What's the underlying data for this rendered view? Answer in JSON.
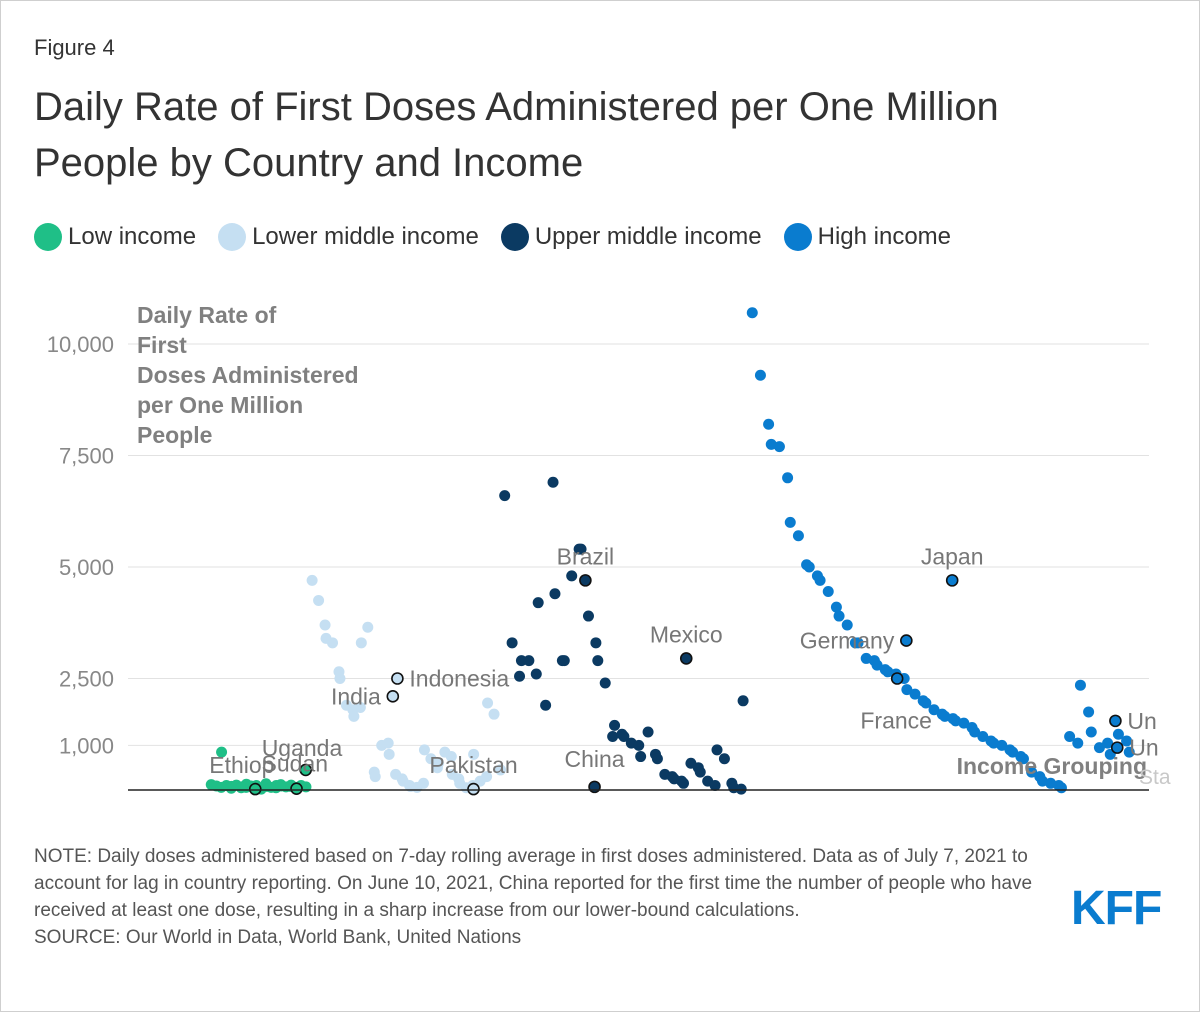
{
  "figure_label": "Figure 4",
  "title": "Daily Rate of First Doses Administered per One Million People by Country and Income",
  "legend": [
    {
      "label": "Low income",
      "color": "#1fbf87"
    },
    {
      "label": "Lower middle income",
      "color": "#c5dff2"
    },
    {
      "label": "Upper middle income",
      "color": "#0b3a62"
    },
    {
      "label": "High income",
      "color": "#0a7ccf"
    }
  ],
  "note": "NOTE: Daily doses administered based on 7-day rolling average in first doses administered. Data as of July 7, 2021 to account for lag in country reporting. On June 10, 2021, China reported for the first time the number of people who have received at least one dose, resulting in a sharp increase from our lower-bound calculations.",
  "source": "SOURCE: Our World in Data, World Bank, United Nations",
  "logo": "KFF",
  "chart_data": {
    "type": "scatter",
    "title": "Daily Rate of First Doses Administered per One Million People",
    "ylabel": "Daily Rate of First Doses Administered per One Million People",
    "xlabel": "Income Grouping",
    "ylim": [
      0,
      10000
    ],
    "yticks": [
      1000,
      2500,
      5000,
      7500,
      10000
    ],
    "ytick_labels": [
      "1,000",
      "2,500",
      "5,000",
      "7,500",
      "10,000"
    ],
    "x_index_range": [
      0,
      100
    ],
    "series": [
      {
        "name": "Low income",
        "color": "#1fbf87",
        "x_range": [
          0,
          10
        ],
        "values": [
          120,
          90,
          850,
          60,
          100,
          80,
          40,
          110,
          70,
          50,
          130,
          60,
          90,
          100,
          70,
          20,
          80,
          140,
          60,
          100,
          50,
          90,
          120,
          70,
          110,
          80,
          60,
          100,
          90,
          70
        ]
      },
      {
        "name": "Lower middle income",
        "color": "#c5dff2",
        "x_range": [
          11,
          31
        ],
        "values": [
          4700,
          4250,
          3700,
          3400,
          3300,
          2650,
          2500,
          1900,
          1800,
          1650,
          1850,
          3300,
          3650,
          400,
          300,
          1000,
          1050,
          800,
          350,
          250,
          200,
          100,
          80,
          60,
          150,
          900,
          700,
          500,
          600,
          850,
          750,
          350,
          250,
          150,
          50,
          100,
          800,
          200,
          300,
          1950,
          1700,
          450
        ]
      },
      {
        "name": "Upper middle income",
        "color": "#0b3a62",
        "x_range": [
          32,
          58
        ],
        "values": [
          6600,
          3300,
          2550,
          2900,
          2900,
          2600,
          4200,
          1900,
          6900,
          4400,
          2900,
          2900,
          4800,
          5400,
          5400,
          3900,
          3300,
          2900,
          2400,
          1200,
          1450,
          1250,
          1200,
          1050,
          1000,
          750,
          1300,
          800,
          700,
          350,
          300,
          250,
          200,
          150,
          600,
          500,
          400,
          200,
          100,
          900,
          700,
          150,
          50,
          20,
          2000
        ]
      },
      {
        "name": "High income",
        "color": "#0a7ccf",
        "x_range": [
          59,
          100
        ],
        "values": [
          10700,
          9300,
          8200,
          7750,
          7700,
          7000,
          6000,
          5700,
          5050,
          5000,
          4800,
          4700,
          4450,
          4100,
          3900,
          3700,
          3300,
          3300,
          2950,
          2900,
          2800,
          2700,
          2650,
          2600,
          2500,
          2250,
          2150,
          2000,
          1950,
          1800,
          1700,
          1650,
          1600,
          1550,
          1500,
          1400,
          1300,
          1200,
          1100,
          1050,
          1000,
          900,
          850,
          750,
          700,
          400,
          300,
          200,
          150,
          100,
          50,
          1200,
          1050,
          2350,
          1750,
          1300,
          950,
          1050,
          800,
          1250,
          1100,
          850
        ]
      }
    ],
    "labeled_points": [
      {
        "label": "Ethiopia",
        "text": "Ethiop",
        "group": "Low income",
        "x": 4.5,
        "value": 20
      },
      {
        "label": "Sudan",
        "text": "Sudan",
        "group": "Low income",
        "x": 9,
        "value": 30
      },
      {
        "label": "Uganda",
        "text": "Uganda",
        "group": "Low income",
        "x": 10,
        "value": 450
      },
      {
        "label": "India",
        "text": "India",
        "group": "Lower middle income",
        "x": 19.5,
        "value": 2100
      },
      {
        "label": "Indonesia",
        "text": "Indonesia",
        "group": "Lower middle income",
        "x": 20,
        "value": 2500
      },
      {
        "label": "Pakistan",
        "text": "Pakistan",
        "group": "Lower middle income",
        "x": 28.3,
        "value": 20
      },
      {
        "label": "Brazil",
        "text": "Brazil",
        "group": "Upper middle income",
        "x": 40.5,
        "value": 4700
      },
      {
        "label": "China",
        "text": "China",
        "group": "Upper middle income",
        "x": 41.5,
        "value": 70
      },
      {
        "label": "Mexico",
        "text": "Mexico",
        "group": "Upper middle income",
        "x": 51.5,
        "value": 2950
      },
      {
        "label": "Germany",
        "text": "Germany",
        "group": "High income",
        "x": 75.5,
        "value": 3350
      },
      {
        "label": "France",
        "text": "France",
        "group": "High income",
        "x": 74.5,
        "value": 2500
      },
      {
        "label": "Japan",
        "text": "Japan",
        "group": "High income",
        "x": 80.5,
        "value": 4700
      },
      {
        "label": "United Kingdom",
        "text": "Un",
        "group": "High income",
        "x": 98.3,
        "value": 1550
      },
      {
        "label": "United States",
        "text": "Un",
        "group": "High income",
        "x": 98.5,
        "value": 950
      }
    ],
    "clipped_text": "Sta"
  }
}
